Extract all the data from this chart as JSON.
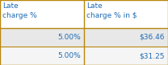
{
  "col1_header": "Late\ncharge %",
  "col2_header": "Late\ncharge % in $",
  "rows": [
    [
      "5.00%",
      "$36.46"
    ],
    [
      "5.00%",
      "$31.25"
    ]
  ],
  "header_bg": "#ffffff",
  "row_bg_odd": "#e8e8e8",
  "row_bg_even": "#f5f5f5",
  "border_color": "#b8860b",
  "text_color": "#1f6bb5",
  "header_font_size": 6.5,
  "row_font_size": 6.5,
  "fig_width": 2.08,
  "fig_height": 0.81,
  "dpi": 100
}
